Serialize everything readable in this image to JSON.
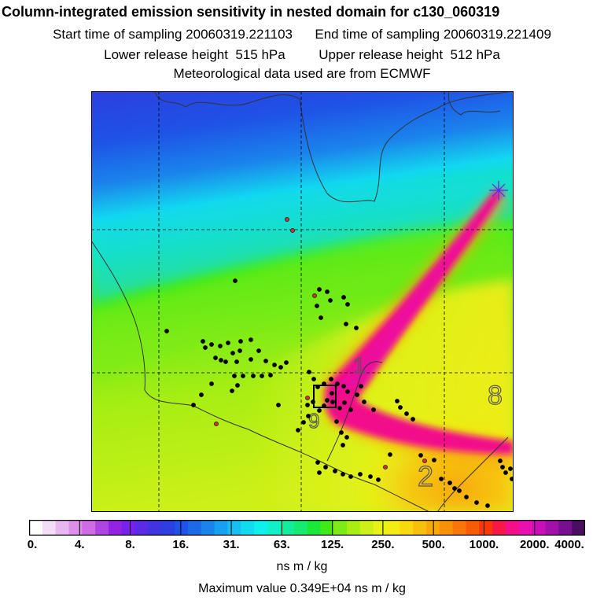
{
  "title": "Column-integrated emission sensitivity in nested domain for c130_060319",
  "start_label": "Start time of sampling 20060319.221103",
  "end_label": "End time of sampling 20060319.221409",
  "lower_label": "Lower release height  515 hPa",
  "upper_label": "Upper release height  512 hPa",
  "met_label": "Meteorological data used are from ECMWF",
  "colorbar": {
    "ticks": [
      "0.",
      "4.",
      "8.",
      "16.",
      "31.",
      "63.",
      "125.",
      "250.",
      "500.",
      "1000.",
      "2000.",
      "4000."
    ],
    "colors": [
      "#ffffff",
      "#f3dcf6",
      "#e8b6f0",
      "#dc90ea",
      "#cf6ce5",
      "#b044e0",
      "#9422e3",
      "#7722e8",
      "#5a2ae6",
      "#4033e0",
      "#2c3fe0",
      "#1f52e6",
      "#1d6ae8",
      "#1a84ec",
      "#17a0f0",
      "#17bff2",
      "#10dcf0",
      "#0ff0ee",
      "#12f0c8",
      "#12ec9c",
      "#16ea70",
      "#19e838",
      "#3fea17",
      "#7ceb17",
      "#a8ee14",
      "#cdf018",
      "#e6f21a",
      "#f4ed15",
      "#f8d80f",
      "#f8c00c",
      "#f8a80a",
      "#f89008",
      "#f87608",
      "#f85a06",
      "#f83808",
      "#f81848",
      "#f2108a",
      "#e810b0",
      "#c910b8",
      "#a110a8",
      "#761090",
      "#4a0e60"
    ]
  },
  "units": "ns m / kg",
  "max_label": "Maximum value  0.349E+04 ns m / kg",
  "contour_labels": [
    "1",
    "8",
    "2",
    "9"
  ],
  "colors": {
    "frame": "#000000",
    "gridline": "#000000",
    "marker_black": "#000000",
    "marker_red": "#cc3333"
  }
}
